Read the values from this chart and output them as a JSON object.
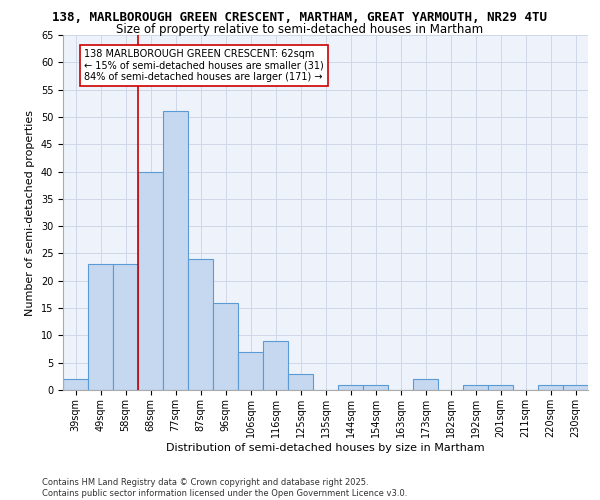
{
  "title_line1": "138, MARLBOROUGH GREEN CRESCENT, MARTHAM, GREAT YARMOUTH, NR29 4TU",
  "title_line2": "Size of property relative to semi-detached houses in Martham",
  "xlabel": "Distribution of semi-detached houses by size in Martham",
  "ylabel": "Number of semi-detached properties",
  "categories": [
    "39sqm",
    "49sqm",
    "58sqm",
    "68sqm",
    "77sqm",
    "87sqm",
    "96sqm",
    "106sqm",
    "116sqm",
    "125sqm",
    "135sqm",
    "144sqm",
    "154sqm",
    "163sqm",
    "173sqm",
    "182sqm",
    "192sqm",
    "201sqm",
    "211sqm",
    "220sqm",
    "230sqm"
  ],
  "values": [
    2,
    23,
    23,
    40,
    51,
    24,
    16,
    7,
    9,
    3,
    0,
    1,
    1,
    0,
    2,
    0,
    1,
    1,
    0,
    1,
    1
  ],
  "bar_color": "#c5d8f0",
  "bar_edge_color": "#5a9bd5",
  "grid_color": "#d0d8e8",
  "background_color": "#eef2fa",
  "vline_x_index": 2,
  "vline_color": "#cc0000",
  "annotation_text": "138 MARLBOROUGH GREEN CRESCENT: 62sqm\n← 15% of semi-detached houses are smaller (31)\n84% of semi-detached houses are larger (171) →",
  "annotation_box_color": "#ffffff",
  "annotation_box_edge": "#cc0000",
  "ylim": [
    0,
    65
  ],
  "yticks": [
    0,
    5,
    10,
    15,
    20,
    25,
    30,
    35,
    40,
    45,
    50,
    55,
    60,
    65
  ],
  "footer_line1": "Contains HM Land Registry data © Crown copyright and database right 2025.",
  "footer_line2": "Contains public sector information licensed under the Open Government Licence v3.0.",
  "title_fontsize": 9.0,
  "subtitle_fontsize": 8.5,
  "tick_fontsize": 7.0,
  "label_fontsize": 8.0,
  "annotation_fontsize": 7.0,
  "footer_fontsize": 6.0,
  "fig_width": 6.0,
  "fig_height": 5.0,
  "fig_dpi": 100
}
